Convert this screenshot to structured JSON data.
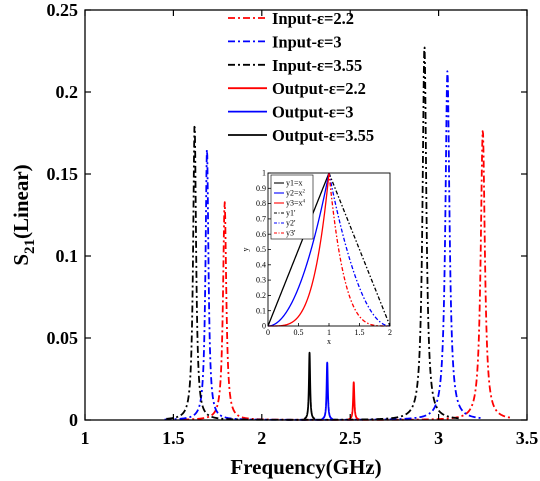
{
  "chart_data": [
    {
      "type": "line",
      "role": "main",
      "xlabel": "Frequency(GHz)",
      "ylabel": {
        "main": "S",
        "sub": "21",
        "rest": "(Linear)"
      },
      "xlim": [
        1,
        3.5
      ],
      "ylim": [
        0,
        0.25
      ],
      "xticks": [
        1,
        1.5,
        2,
        2.5,
        3,
        3.5
      ],
      "xtick_labels": [
        "1",
        "1.5",
        "2",
        "2.5",
        "3",
        "3.5"
      ],
      "yticks": [
        0,
        0.05,
        0.1,
        0.15,
        0.2,
        0.25
      ],
      "ytick_labels": [
        "0",
        "0.05",
        "0.1",
        "0.15",
        "0.2",
        "0.25"
      ],
      "grid": false,
      "legend_position": "top-right",
      "series": [
        {
          "name": "Input-ε=2.2",
          "color": "#ff0000",
          "style": "dashdot",
          "peaks": [
            {
              "f": 1.79,
              "amp": 0.133,
              "w": 0.011
            },
            {
              "f": 3.25,
              "amp": 0.177,
              "w": 0.014
            }
          ],
          "range": [
            1.55,
            3.42
          ]
        },
        {
          "name": "Input-ε=3",
          "color": "#0000ff",
          "style": "dashdot",
          "peaks": [
            {
              "f": 1.69,
              "amp": 0.166,
              "w": 0.01
            },
            {
              "f": 3.05,
              "amp": 0.213,
              "w": 0.014
            }
          ],
          "range": [
            1.45,
            3.25
          ]
        },
        {
          "name": "Input-ε=3.55",
          "color": "#000000",
          "style": "dashdot",
          "peaks": [
            {
              "f": 1.62,
              "amp": 0.181,
              "w": 0.01
            },
            {
              "f": 2.92,
              "amp": 0.228,
              "w": 0.013
            }
          ],
          "range": [
            1.46,
            3.12
          ]
        },
        {
          "name": "Output-ε=2.2",
          "color": "#ff0000",
          "style": "solid",
          "peaks": [
            {
              "f": 2.52,
              "amp": 0.023,
              "w": 0.004
            }
          ],
          "range": [
            2.49,
            2.55
          ]
        },
        {
          "name": "Output-ε=3",
          "color": "#0000ff",
          "style": "solid",
          "peaks": [
            {
              "f": 2.37,
              "amp": 0.035,
              "w": 0.004
            }
          ],
          "range": [
            2.34,
            2.4
          ]
        },
        {
          "name": "Output-ε=3.55",
          "color": "#000000",
          "style": "solid",
          "peaks": [
            {
              "f": 2.27,
              "amp": 0.041,
              "w": 0.004
            }
          ],
          "range": [
            2.24,
            2.3
          ]
        }
      ]
    },
    {
      "type": "line",
      "role": "inset",
      "xlabel": "x",
      "ylabel": "y",
      "xlim": [
        0,
        2
      ],
      "ylim": [
        0,
        1
      ],
      "xticks": [
        0,
        0.5,
        1,
        1.5,
        2
      ],
      "xtick_labels": [
        "0",
        "0.5",
        "1",
        "1.5",
        "2"
      ],
      "yticks": [
        0,
        0.1,
        0.2,
        0.3,
        0.4,
        0.5,
        0.6,
        0.7,
        0.8,
        0.9,
        1
      ],
      "ytick_labels": [
        "0",
        "0.1",
        "0.2",
        "0.3",
        "0.4",
        "0.5",
        "0.6",
        "0.7",
        "0.8",
        "0.9",
        "1"
      ],
      "legend_position": "top-left",
      "series": [
        {
          "name": "y1=x",
          "sup": "",
          "color": "#000000",
          "style": "solid",
          "power": 1,
          "branch": "left"
        },
        {
          "name": "y2=x",
          "sup": "2",
          "color": "#0000ff",
          "style": "solid",
          "power": 2,
          "branch": "left"
        },
        {
          "name": "y3=x",
          "sup": "4",
          "color": "#ff0000",
          "style": "solid",
          "power": 4,
          "branch": "left"
        },
        {
          "name": "y1'",
          "sup": "",
          "color": "#000000",
          "style": "dashdot",
          "power": 1,
          "branch": "right"
        },
        {
          "name": "y2'",
          "sup": "",
          "color": "#0000ff",
          "style": "dashdot",
          "power": 2,
          "branch": "right"
        },
        {
          "name": "y3'",
          "sup": "",
          "color": "#ff0000",
          "style": "dashdot",
          "power": 4,
          "branch": "right"
        }
      ]
    }
  ]
}
